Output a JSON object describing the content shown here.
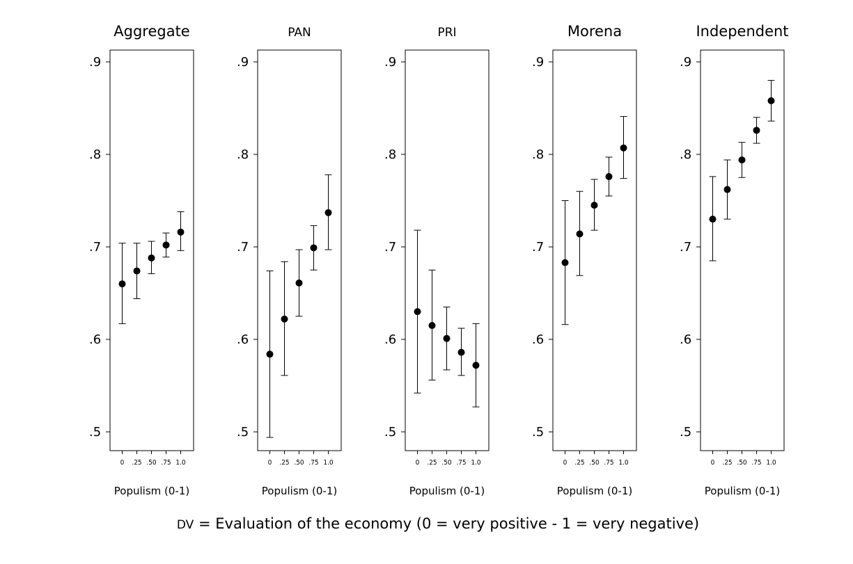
{
  "chart_data": [
    {
      "type": "scatter",
      "title": "Aggregate",
      "title_size": "large",
      "xlabel": "Populism (0-1)",
      "ylabel": "",
      "x_tick_labels": [
        "0",
        ".25",
        ".50",
        ".75",
        "1.0"
      ],
      "y_tick_labels": [
        ".5",
        ".6",
        ".7",
        ".8",
        ".9"
      ],
      "y_ticks": [
        0.5,
        0.6,
        0.7,
        0.8,
        0.9
      ],
      "ylim": [
        0.49,
        0.915
      ],
      "series": [
        {
          "name": "Aggregate",
          "x": [
            0,
            0.25,
            0.5,
            0.75,
            1.0
          ],
          "values": [
            0.66,
            0.674,
            0.688,
            0.702,
            0.716
          ],
          "ci_low": [
            0.617,
            0.644,
            0.671,
            0.689,
            0.696
          ],
          "ci_high": [
            0.704,
            0.704,
            0.706,
            0.715,
            0.738
          ]
        }
      ]
    },
    {
      "type": "scatter",
      "title": "PAN",
      "title_size": "small",
      "xlabel": "Populism (0-1)",
      "ylabel": "",
      "x_tick_labels": [
        "0",
        ".25",
        ".50",
        ".75",
        "1.0"
      ],
      "y_tick_labels": [
        ".5",
        ".6",
        ".7",
        ".8",
        ".9"
      ],
      "y_ticks": [
        0.5,
        0.6,
        0.7,
        0.8,
        0.9
      ],
      "ylim": [
        0.49,
        0.915
      ],
      "series": [
        {
          "name": "PAN",
          "x": [
            0,
            0.25,
            0.5,
            0.75,
            1.0
          ],
          "values": [
            0.584,
            0.622,
            0.661,
            0.699,
            0.737
          ],
          "ci_low": [
            0.494,
            0.561,
            0.625,
            0.675,
            0.697
          ],
          "ci_high": [
            0.674,
            0.684,
            0.697,
            0.723,
            0.778
          ]
        }
      ]
    },
    {
      "type": "scatter",
      "title": "PRI",
      "title_size": "small",
      "xlabel": "Populism (0-1)",
      "ylabel": "",
      "x_tick_labels": [
        "0",
        ".25",
        ".50",
        ".75",
        "1.0"
      ],
      "y_tick_labels": [
        ".5",
        ".6",
        ".7",
        ".8",
        ".9"
      ],
      "y_ticks": [
        0.5,
        0.6,
        0.7,
        0.8,
        0.9
      ],
      "ylim": [
        0.49,
        0.915
      ],
      "series": [
        {
          "name": "PRI",
          "x": [
            0,
            0.25,
            0.5,
            0.75,
            1.0
          ],
          "values": [
            0.63,
            0.615,
            0.601,
            0.586,
            0.572
          ],
          "ci_low": [
            0.542,
            0.556,
            0.567,
            0.561,
            0.527
          ],
          "ci_high": [
            0.718,
            0.675,
            0.635,
            0.612,
            0.617
          ]
        }
      ]
    },
    {
      "type": "scatter",
      "title": "Morena",
      "title_size": "large",
      "xlabel": "Populism (0-1)",
      "ylabel": "",
      "x_tick_labels": [
        "0",
        ".25",
        ".50",
        ".75",
        "1.0"
      ],
      "y_tick_labels": [
        ".5",
        ".6",
        ".7",
        ".8",
        ".9"
      ],
      "y_ticks": [
        0.5,
        0.6,
        0.7,
        0.8,
        0.9
      ],
      "ylim": [
        0.49,
        0.915
      ],
      "series": [
        {
          "name": "Morena",
          "x": [
            0,
            0.25,
            0.5,
            0.75,
            1.0
          ],
          "values": [
            0.683,
            0.714,
            0.745,
            0.776,
            0.807
          ],
          "ci_low": [
            0.616,
            0.669,
            0.718,
            0.755,
            0.774
          ],
          "ci_high": [
            0.75,
            0.76,
            0.773,
            0.797,
            0.841
          ]
        }
      ]
    },
    {
      "type": "scatter",
      "title": "Independent",
      "title_size": "large",
      "xlabel": "Populism (0-1)",
      "ylabel": "",
      "x_tick_labels": [
        "0",
        ".25",
        ".50",
        ".75",
        "1.0"
      ],
      "y_tick_labels": [
        ".5",
        ".6",
        ".7",
        ".8",
        ".9"
      ],
      "y_ticks": [
        0.5,
        0.6,
        0.7,
        0.8,
        0.9
      ],
      "ylim": [
        0.49,
        0.915
      ],
      "series": [
        {
          "name": "Independent",
          "x": [
            0,
            0.25,
            0.5,
            0.75,
            1.0
          ],
          "values": [
            0.73,
            0.762,
            0.794,
            0.826,
            0.858
          ],
          "ci_low": [
            0.685,
            0.73,
            0.775,
            0.812,
            0.836
          ],
          "ci_high": [
            0.776,
            0.794,
            0.813,
            0.84,
            0.88
          ]
        }
      ]
    }
  ],
  "caption": {
    "prefix": "DV",
    "text": " = Evaluation of the economy (0 = very positive - 1 = very negative)"
  },
  "colors": {
    "marker": "#000000",
    "axis": "#000000",
    "background": "#ffffff"
  }
}
